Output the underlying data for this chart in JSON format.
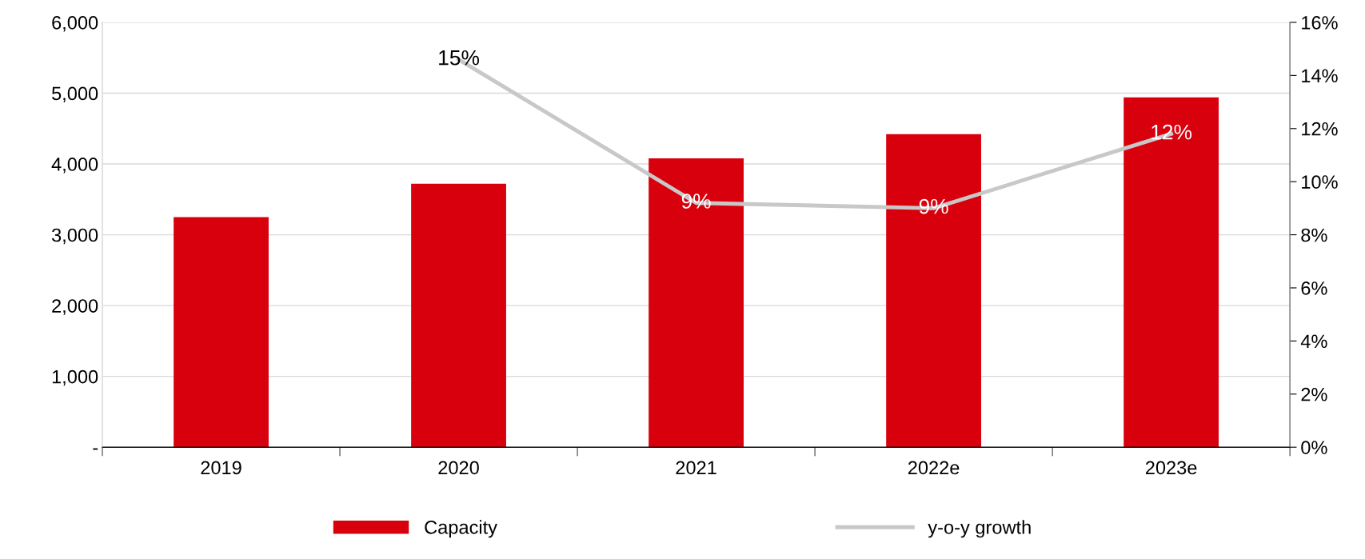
{
  "chart_data": {
    "type": "bar",
    "categories": [
      "2019",
      "2020",
      "2021",
      "2022e",
      "2023e"
    ],
    "series": [
      {
        "name": "Capacity",
        "color": "#d9000d",
        "values": [
          3250,
          3720,
          4080,
          4420,
          4940
        ]
      },
      {
        "name": "y-o-y growth",
        "type": "line",
        "axis": "y2",
        "color": "#c8c8c8",
        "values": [
          null,
          14.6,
          9.2,
          9.0,
          11.8
        ],
        "value_labels": [
          null,
          "15%",
          "9%",
          "9%",
          "12%"
        ]
      }
    ],
    "ylim": [
      0,
      6000
    ],
    "yticks": [
      {
        "value": 0,
        "label": "-"
      },
      {
        "value": 1000,
        "label": "1,000"
      },
      {
        "value": 2000,
        "label": "2,000"
      },
      {
        "value": 3000,
        "label": "3,000"
      },
      {
        "value": 4000,
        "label": "4,000"
      },
      {
        "value": 5000,
        "label": "5,000"
      },
      {
        "value": 6000,
        "label": "6,000"
      }
    ],
    "y2lim": [
      0,
      16
    ],
    "y2ticks": [
      {
        "value": 0,
        "label": "0%"
      },
      {
        "value": 2,
        "label": "2%"
      },
      {
        "value": 4,
        "label": "4%"
      },
      {
        "value": 6,
        "label": "6%"
      },
      {
        "value": 8,
        "label": "8%"
      },
      {
        "value": 10,
        "label": "10%"
      },
      {
        "value": 12,
        "label": "12%"
      },
      {
        "value": 14,
        "label": "14%"
      },
      {
        "value": 16,
        "label": "16%"
      }
    ],
    "grid": "y",
    "legend": "bottom",
    "marker": "none",
    "line_style": "solid"
  }
}
